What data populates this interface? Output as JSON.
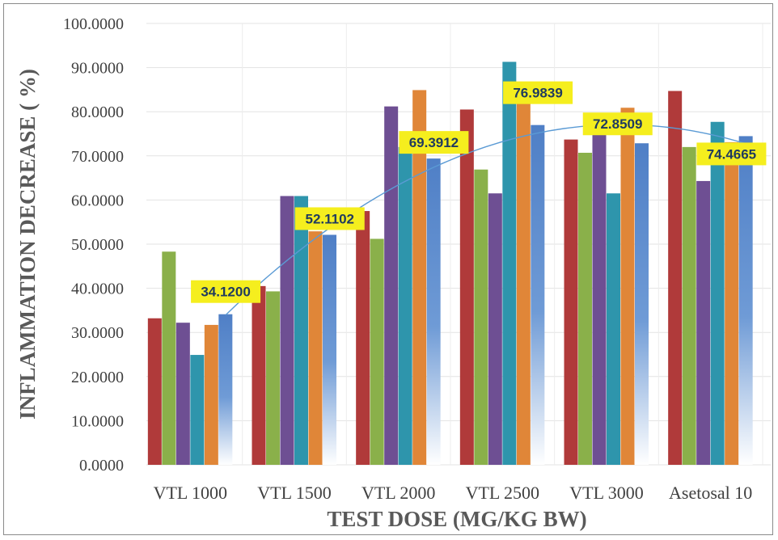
{
  "chart_data": {
    "type": "bar",
    "xlabel": "TEST DOSE (MG/KG BW)",
    "ylabel": "INFLAMMATION DECREASE ( %)",
    "ylim": [
      0,
      100
    ],
    "yticks": [
      "0.0000",
      "10.0000",
      "20.0000",
      "30.0000",
      "40.0000",
      "50.0000",
      "60.0000",
      "70.0000",
      "80.0000",
      "90.0000",
      "100.0000"
    ],
    "categories": [
      "VTL 1000",
      "VTL 1500",
      "VTL 2000",
      "VTL 2500",
      "VTL 3000",
      "Asetosal 10"
    ],
    "series": [
      {
        "color": "#b03a3a",
        "values": [
          33.2,
          40.5,
          57.5,
          80.5,
          73.7,
          84.7
        ]
      },
      {
        "color": "#8ab04a",
        "values": [
          48.3,
          39.3,
          51.2,
          66.9,
          70.7,
          72.0
        ]
      },
      {
        "color": "#6e4f93",
        "values": [
          32.2,
          60.9,
          81.2,
          61.5,
          77.7,
          64.3
        ]
      },
      {
        "color": "#2e95ac",
        "values": [
          24.9,
          60.9,
          72.0,
          91.3,
          61.5,
          77.7
        ]
      },
      {
        "color": "#e08638",
        "values": [
          31.7,
          52.9,
          84.9,
          82.8,
          80.9,
          73.1
        ]
      },
      {
        "color": "#4f7fc6",
        "gradient": true,
        "values": [
          34.12,
          52.1102,
          69.3912,
          76.9839,
          72.8509,
          74.4665
        ]
      }
    ],
    "data_labels": [
      "34.1200",
      "52.1102",
      "69.3912",
      "76.9839",
      "72.8509",
      "74.4665"
    ],
    "trendline": {
      "type": "polynomial",
      "color": "#5b9bd5"
    },
    "grid": true
  }
}
